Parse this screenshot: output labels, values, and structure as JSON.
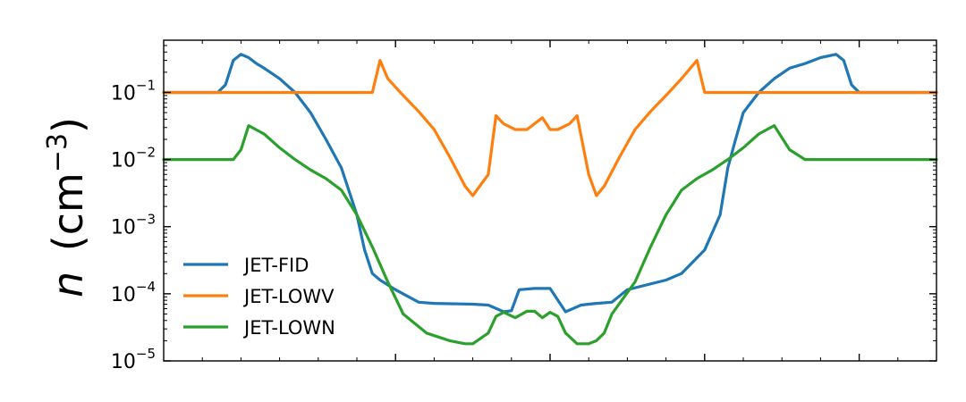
{
  "chart_data": {
    "type": "line",
    "title": "",
    "xlabel": "",
    "ylabel": {
      "symbol": "n",
      "unit_base": "cm",
      "unit_exp": "−3",
      "open": "(",
      "close": ")"
    },
    "yscale": "log",
    "ylim": [
      1e-05,
      0.6
    ],
    "xlim": [
      0,
      1
    ],
    "grid": false,
    "legend": "lower-left",
    "y_ticks": [
      {
        "value": 1e-05,
        "base": "10",
        "exp": "−5"
      },
      {
        "value": 0.0001,
        "base": "10",
        "exp": "−4"
      },
      {
        "value": 0.001,
        "base": "10",
        "exp": "−3"
      },
      {
        "value": 0.01,
        "base": "10",
        "exp": "−2"
      },
      {
        "value": 0.1,
        "base": "10",
        "exp": "−1"
      }
    ],
    "x_major_ticks": [
      0.3,
      0.5,
      0.7,
      0.9
    ],
    "series": [
      {
        "name": "JET-FID",
        "color": "#1f77b4",
        "x": [
          0,
          0.07,
          0.08,
          0.09,
          0.1,
          0.11,
          0.12,
          0.13,
          0.15,
          0.17,
          0.19,
          0.21,
          0.23,
          0.25,
          0.26,
          0.27,
          0.28,
          0.3,
          0.33,
          0.35,
          0.4,
          0.42,
          0.44,
          0.45,
          0.46,
          0.48,
          0.5,
          0.52,
          0.54,
          0.55,
          0.56,
          0.58,
          0.6,
          0.65,
          0.67,
          0.7,
          0.72,
          0.73,
          0.74,
          0.75,
          0.77,
          0.79,
          0.81,
          0.83,
          0.85,
          0.87,
          0.88,
          0.89,
          0.9,
          0.91,
          0.92,
          0.93,
          1.0
        ],
        "y": [
          0.1,
          0.1,
          0.13,
          0.3,
          0.37,
          0.33,
          0.27,
          0.23,
          0.16,
          0.1,
          0.05,
          0.02,
          0.0075,
          0.0015,
          0.00045,
          0.0002,
          0.00016,
          0.000115,
          7.5e-05,
          7.2e-05,
          7e-05,
          6.8e-05,
          5.4e-05,
          5.6e-05,
          0.000115,
          0.00012,
          0.00012,
          5.4e-05,
          6.8e-05,
          7e-05,
          7.2e-05,
          7.5e-05,
          0.000115,
          0.00016,
          0.0002,
          0.00045,
          0.0015,
          0.0075,
          0.02,
          0.05,
          0.1,
          0.16,
          0.23,
          0.27,
          0.33,
          0.37,
          0.3,
          0.13,
          0.1,
          0.1,
          0.1,
          0.1,
          0.1
        ]
      },
      {
        "name": "JET-LOWV",
        "color": "#ff7f0e",
        "x": [
          0,
          0.27,
          0.28,
          0.29,
          0.31,
          0.33,
          0.35,
          0.37,
          0.39,
          0.4,
          0.42,
          0.43,
          0.44,
          0.455,
          0.47,
          0.49,
          0.5,
          0.51,
          0.525,
          0.535,
          0.55,
          0.56,
          0.57,
          0.59,
          0.61,
          0.63,
          0.65,
          0.67,
          0.69,
          0.7,
          0.72,
          0.73,
          1.0
        ],
        "y": [
          0.1,
          0.1,
          0.3,
          0.16,
          0.09,
          0.052,
          0.028,
          0.011,
          0.004,
          0.0029,
          0.006,
          0.045,
          0.034,
          0.028,
          0.028,
          0.042,
          0.028,
          0.028,
          0.034,
          0.045,
          0.006,
          0.0029,
          0.004,
          0.011,
          0.028,
          0.052,
          0.09,
          0.16,
          0.3,
          0.1,
          0.1,
          0.1,
          0.1
        ]
      },
      {
        "name": "JET-LOWN",
        "color": "#2ca02c",
        "x": [
          0,
          0.09,
          0.1,
          0.11,
          0.13,
          0.15,
          0.17,
          0.19,
          0.21,
          0.23,
          0.25,
          0.27,
          0.29,
          0.31,
          0.34,
          0.37,
          0.39,
          0.4,
          0.42,
          0.43,
          0.44,
          0.455,
          0.47,
          0.48,
          0.49,
          0.5,
          0.51,
          0.52,
          0.535,
          0.55,
          0.56,
          0.57,
          0.58,
          0.61,
          0.63,
          0.65,
          0.67,
          0.69,
          0.71,
          0.73,
          0.75,
          0.77,
          0.79,
          0.81,
          0.83,
          0.85,
          0.87,
          0.88,
          0.89,
          0.9,
          0.91,
          0.92,
          0.93,
          1.0
        ],
        "y": [
          0.01,
          0.01,
          0.014,
          0.032,
          0.024,
          0.015,
          0.01,
          0.007,
          0.0052,
          0.0035,
          0.0015,
          0.0005,
          0.00015,
          5e-05,
          2.6e-05,
          2e-05,
          1.8e-05,
          1.8e-05,
          2.6e-05,
          4.6e-05,
          5.3e-05,
          4.4e-05,
          5.5e-05,
          5.5e-05,
          4.4e-05,
          5.3e-05,
          4.6e-05,
          2.6e-05,
          1.8e-05,
          1.8e-05,
          2e-05,
          2.6e-05,
          5e-05,
          0.00015,
          0.0005,
          0.0015,
          0.0035,
          0.0052,
          0.007,
          0.01,
          0.015,
          0.024,
          0.032,
          0.014,
          0.01,
          0.01,
          0.01,
          0.01,
          0.01,
          0.01,
          0.01,
          0.01,
          0.01,
          0.01
        ]
      }
    ]
  }
}
